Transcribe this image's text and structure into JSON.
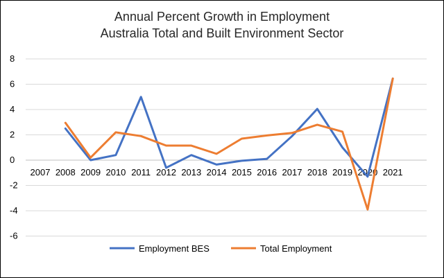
{
  "chart_data": {
    "type": "line",
    "title": "Annual Percent Growth in Employment",
    "subtitle": "Australia Total and Built Environment Sector",
    "categories": [
      "2007",
      "2008",
      "2009",
      "2010",
      "2011",
      "2012",
      "2013",
      "2014",
      "2015",
      "2016",
      "2017",
      "2018",
      "2019",
      "2020",
      "2021"
    ],
    "ylim": [
      -6,
      8
    ],
    "yticks": [
      -6,
      -4,
      -2,
      0,
      2,
      4,
      6,
      8
    ],
    "grid": true,
    "legend": "bottom",
    "series": [
      {
        "name": "Employment BES",
        "color": "#4472C4",
        "values": [
          null,
          2.5,
          0.0,
          0.4,
          5.0,
          -0.6,
          0.4,
          -0.35,
          -0.05,
          0.1,
          1.9,
          4.05,
          1.0,
          -1.3,
          6.45
        ]
      },
      {
        "name": "Total Employment",
        "color": "#ED7D31",
        "values": [
          null,
          2.95,
          0.2,
          2.2,
          1.9,
          1.15,
          1.15,
          0.5,
          1.7,
          1.95,
          2.15,
          2.8,
          2.25,
          -3.9,
          6.45
        ]
      }
    ]
  }
}
